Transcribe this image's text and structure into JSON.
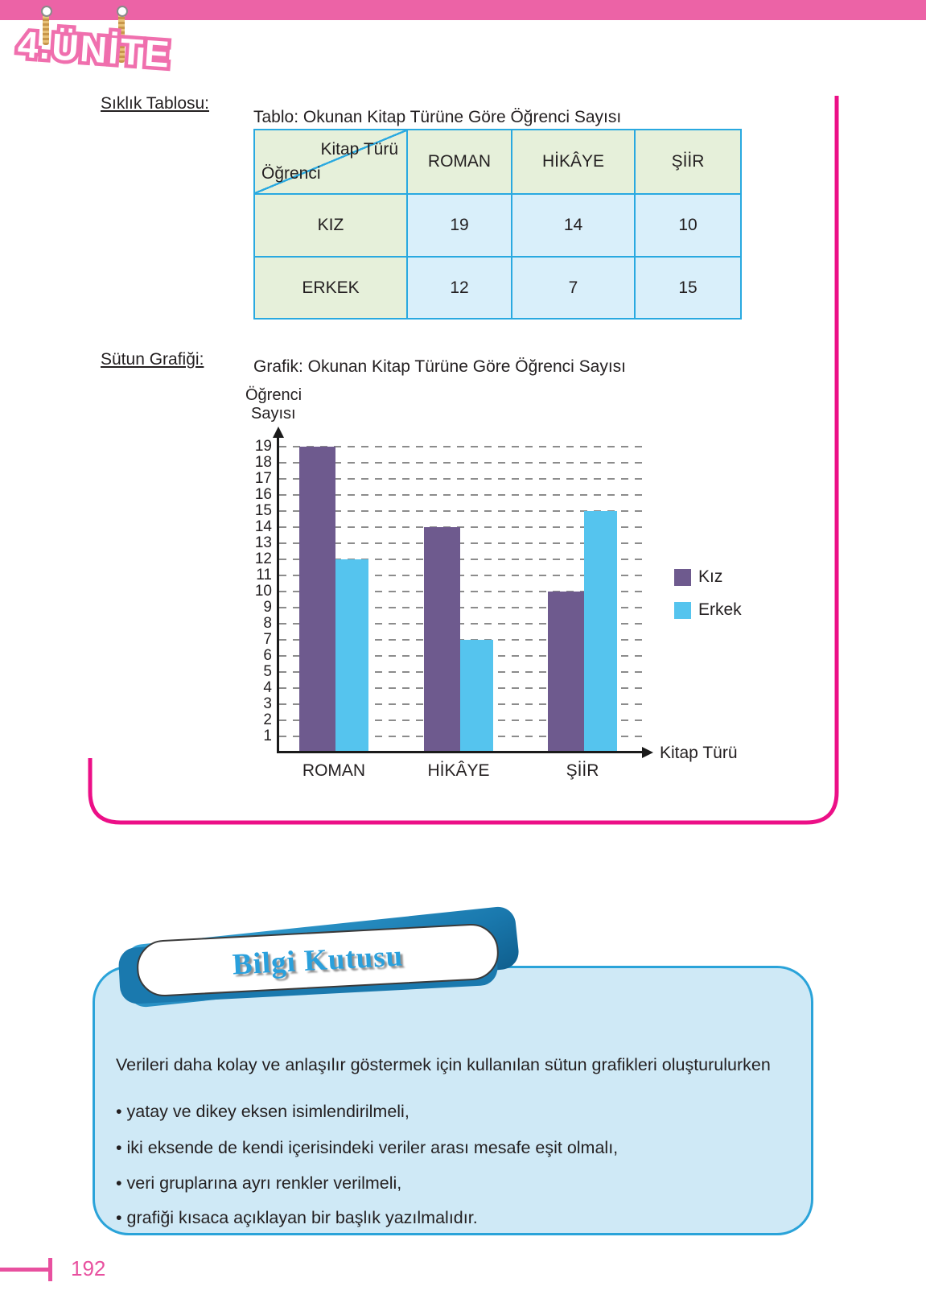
{
  "page": {
    "unit_badge": "4.ÜNİTE",
    "page_number": "192"
  },
  "frequency_table_section": {
    "heading": "Sıklık Tablosu:",
    "table_title": "Tablo: Okunan Kitap Türüne Göre Öğrenci Sayısı",
    "corner_top_right": "Kitap Türü",
    "corner_bottom_left": "Öğrenci",
    "columns": [
      "ROMAN",
      "HİKÂYE",
      "ŞİİR"
    ],
    "rows": [
      {
        "label": "KIZ",
        "values": [
          "19",
          "14",
          "10"
        ]
      },
      {
        "label": "ERKEK",
        "values": [
          "12",
          "7",
          "15"
        ]
      }
    ]
  },
  "chart_section": {
    "heading": "Sütun Grafiği:",
    "title": "Grafik: Okunan Kitap Türüne Göre Öğrenci Sayısı"
  },
  "chart_data": {
    "type": "bar",
    "title": "Grafik: Okunan Kitap Türüne Göre Öğrenci Sayısı",
    "categories": [
      "ROMAN",
      "HİKÂYE",
      "ŞİİR"
    ],
    "series": [
      {
        "name": "Kız",
        "color": "#6e5a8e",
        "values": [
          19,
          14,
          10
        ]
      },
      {
        "name": "Erkek",
        "color": "#55c4ee",
        "values": [
          12,
          7,
          15
        ]
      }
    ],
    "xlabel": "Kitap Türü",
    "ylabel_line1": "Öğrenci",
    "ylabel_line2": "Sayısı",
    "ylim": [
      0,
      19
    ],
    "yticks": [
      1,
      2,
      3,
      4,
      5,
      6,
      7,
      8,
      9,
      10,
      11,
      12,
      13,
      14,
      15,
      16,
      17,
      18,
      19
    ],
    "grid": "horizontal-dashed",
    "legend_position": "right"
  },
  "info_box": {
    "badge": "Bilgi Kutusu",
    "intro": "Verileri daha kolay ve anlaşılır göstermek için kullanılan sütun grafikleri oluşturulurken",
    "bullets": [
      "yatay ve dikey eksen isimlendirilmeli,",
      "iki eksende de kendi içerisindeki veriler arası mesafe eşit olmalı,",
      "veri gruplarına ayrı renkler verilmeli,",
      "grafiği kısaca açıklayan bir başlık yazılmalıdır."
    ]
  },
  "colors": {
    "topbar_pink": "#ec63a6",
    "frame_pink": "#ec0f87",
    "table_border": "#29a9e0",
    "cell_green": "#e6f0da",
    "cell_blue": "#d9effa",
    "bar_kiz": "#6e5a8e",
    "bar_erkek": "#55c4ee",
    "infobox_bg": "#cfe9f6",
    "infobox_border": "#2aa3d9",
    "badge_text": "#2aa0dc",
    "footer_pink": "#e8509f"
  }
}
